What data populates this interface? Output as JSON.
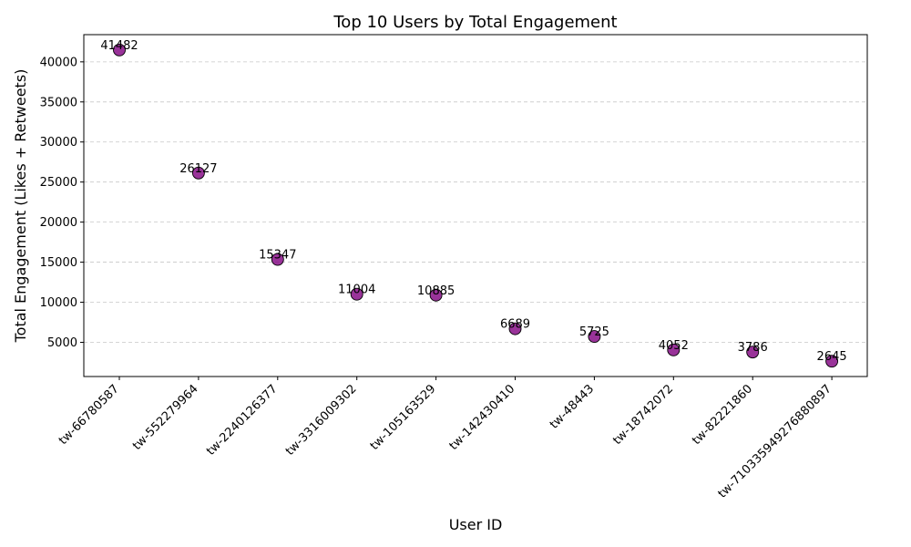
{
  "chart_data": {
    "type": "scatter",
    "title": "Top 10 Users by Total Engagement",
    "xlabel": "User ID",
    "ylabel": "Total Engagement (Likes + Retweets)",
    "categories": [
      "tw-66780587",
      "tw-552279964",
      "tw-2240126377",
      "tw-3316009302",
      "tw-105163529",
      "tw-142430410",
      "tw-48443",
      "tw-18742072",
      "tw-82221860",
      "tw-710335949276880897"
    ],
    "values": [
      41482,
      26127,
      15347,
      11004,
      10885,
      6689,
      5725,
      4052,
      3786,
      2645
    ],
    "ylim": [
      732,
      43395
    ],
    "yticks": [
      5000,
      10000,
      15000,
      20000,
      25000,
      30000,
      35000,
      40000
    ],
    "grid": "y-dashed",
    "marker_color": "#800080",
    "marker_edge_color": "#000000",
    "x_tick_rotation": 45
  }
}
